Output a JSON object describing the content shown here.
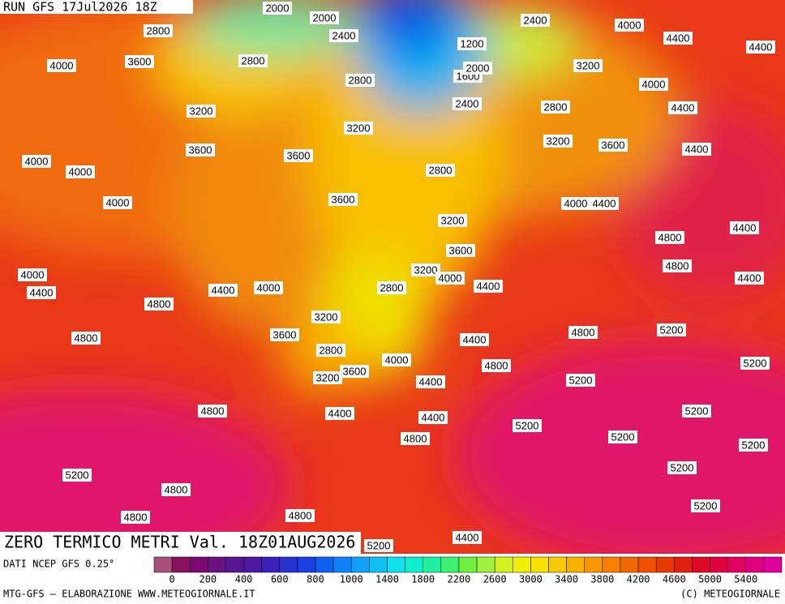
{
  "header": {
    "run": "RUN GFS 17Jul2026 18Z"
  },
  "title": "ZERO TERMICO METRI Val. 18Z01AUG2026",
  "source": "DATI NCEP GFS 0.25°",
  "credit": "MTG-GFS — ELABORAZIONE WWW.METEOGIORNALE.IT",
  "copyright": "(C) METEOGIORNALE",
  "contour_labels": [
    2800,
    4000,
    4400,
    4400,
    4000,
    3600,
    2800,
    3200,
    2400,
    2000,
    2000,
    2400,
    2800,
    1200,
    1600,
    2000,
    2400,
    4000,
    4400,
    3200,
    2800,
    3200,
    3200,
    3600,
    4400,
    3600,
    3600,
    4000,
    4000,
    2800,
    4000,
    3600,
    4000,
    4400,
    3200,
    4400,
    4800,
    3600,
    4000,
    3200,
    4000,
    4800,
    4400,
    4400,
    4400,
    4000,
    2800,
    4400,
    4800,
    3200,
    3600,
    4800,
    4400,
    4800,
    5200,
    2800,
    4000,
    4800,
    5200,
    3200,
    3600,
    4400,
    5200,
    4800,
    4400,
    4400,
    5200,
    5200,
    5200,
    4800,
    5200,
    5200,
    4800,
    5200,
    4800,
    4800,
    5200,
    5200,
    4400
  ],
  "colorbar": {
    "colors": [
      "#a8507a",
      "#8a1060",
      "#7a0a70",
      "#6a1080",
      "#5a1490",
      "#4a18a0",
      "#3a20b8",
      "#2830d0",
      "#1840e0",
      "#1060f0",
      "#1080f8",
      "#10a0f8",
      "#10c0f0",
      "#10e0f0",
      "#10f0d0",
      "#20f0a0",
      "#40f070",
      "#70f040",
      "#a0f040",
      "#d0f020",
      "#f0f000",
      "#f8e000",
      "#f8c800",
      "#f8b000",
      "#f89800",
      "#f88000",
      "#f06800",
      "#f05000",
      "#e83800",
      "#e02010",
      "#e00828",
      "#e00040",
      "#e00060",
      "#e00080",
      "#e000a0"
    ],
    "labels": [
      0,
      200,
      400,
      600,
      800,
      1000,
      1400,
      1800,
      2200,
      2600,
      3000,
      3400,
      3800,
      4200,
      4600,
      5000,
      5400
    ]
  }
}
